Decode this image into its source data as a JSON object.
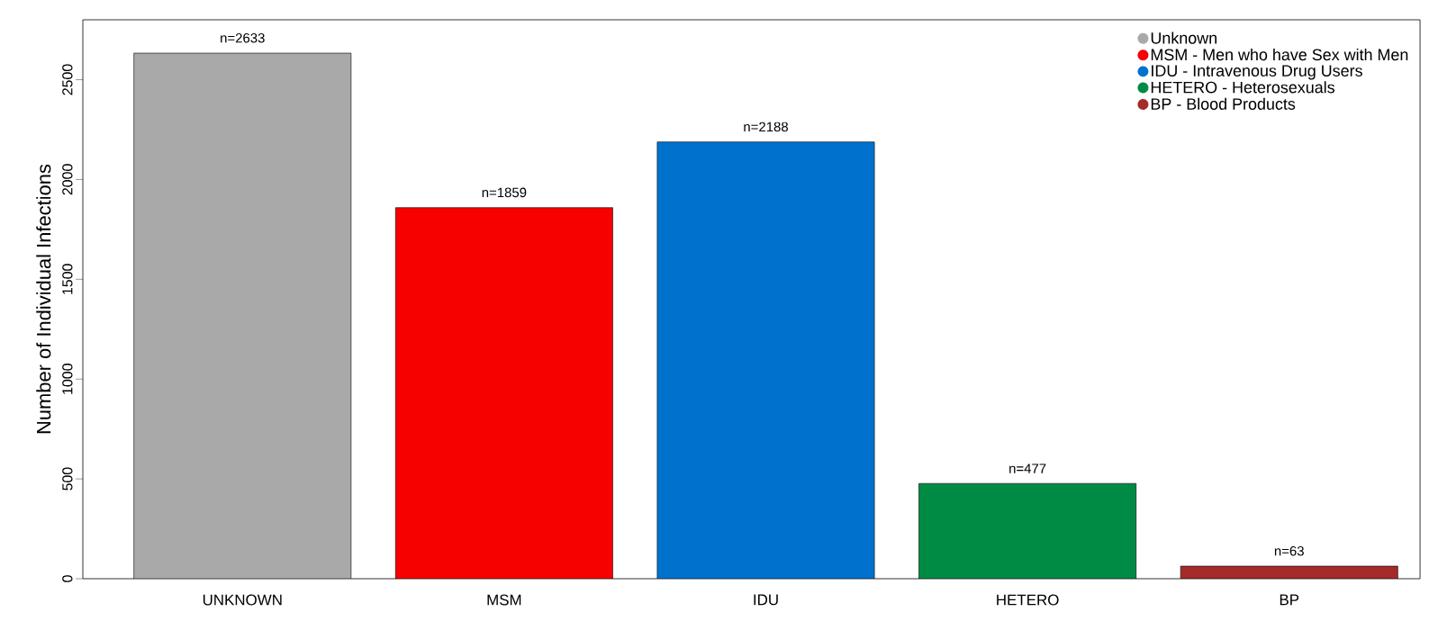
{
  "chart_data": {
    "type": "bar",
    "ylabel": "Number of Individual Infections",
    "categories": [
      "UNKNOWN",
      "MSM",
      "IDU",
      "HETERO",
      "BP"
    ],
    "series": [
      {
        "name": "Unknown",
        "color": "#a9a9a9",
        "values": [
          2633,
          null,
          null,
          null,
          null
        ],
        "value_labels": [
          "n=2633",
          null,
          null,
          null,
          null
        ]
      },
      {
        "name": "MSM - Men who have Sex with Men",
        "color": "#f70000",
        "values": [
          null,
          1859,
          null,
          null,
          null
        ],
        "value_labels": [
          null,
          "n=1859",
          null,
          null,
          null
        ]
      },
      {
        "name": "IDU - Intravenous Drug Users",
        "color": "#0072ce",
        "values": [
          null,
          null,
          2188,
          null,
          null
        ],
        "value_labels": [
          null,
          null,
          "n=2188",
          null,
          null
        ]
      },
      {
        "name": "HETERO - Heterosexuals",
        "color": "#008b45",
        "values": [
          null,
          null,
          null,
          477,
          null
        ],
        "value_labels": [
          null,
          null,
          null,
          "n=477",
          null
        ]
      },
      {
        "name": "BP - Blood Products",
        "color": "#a52a2a",
        "values": [
          null,
          null,
          null,
          null,
          63
        ],
        "value_labels": [
          null,
          null,
          null,
          null,
          "n=63"
        ]
      }
    ],
    "ylim": [
      0,
      2800
    ],
    "yticks": [
      0,
      500,
      1000,
      1500,
      2000,
      2500
    ],
    "legend": "top right"
  }
}
